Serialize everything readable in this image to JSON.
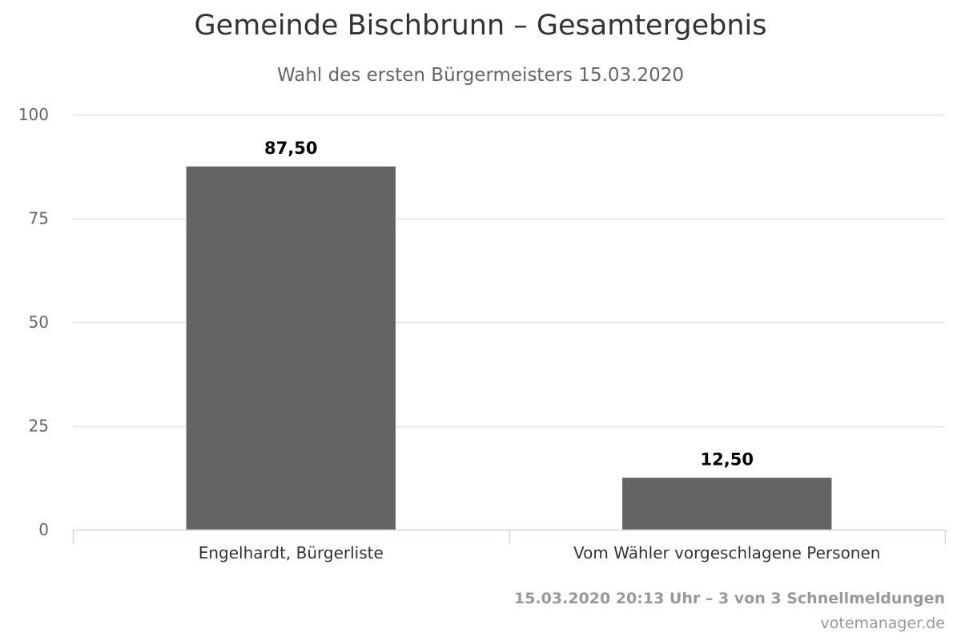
{
  "chart_data": {
    "type": "bar",
    "title": "Gemeinde Bischbrunn – Gesamtergebnis",
    "subtitle": "Wahl des ersten Bürgermeisters 15.03.2020",
    "categories": [
      "Engelhardt, Bürgerliste",
      "Vom Wähler vorgeschlagene Personen"
    ],
    "values": [
      87.5,
      12.5
    ],
    "data_labels": [
      "87,50",
      "12,50"
    ],
    "y_ticks": [
      0,
      25,
      50,
      75,
      100
    ],
    "y_tick_labels": [
      "0",
      "25",
      "50",
      "75",
      "100"
    ],
    "ylim": [
      0,
      100
    ],
    "xlabel": "",
    "ylabel": "",
    "grid": true,
    "legend": "none",
    "bar_color": "#646464"
  },
  "footer": {
    "status": "15.03.2020 20:13 Uhr – 3 von 3 Schnellmeldungen",
    "credit": "votemanager.de"
  }
}
